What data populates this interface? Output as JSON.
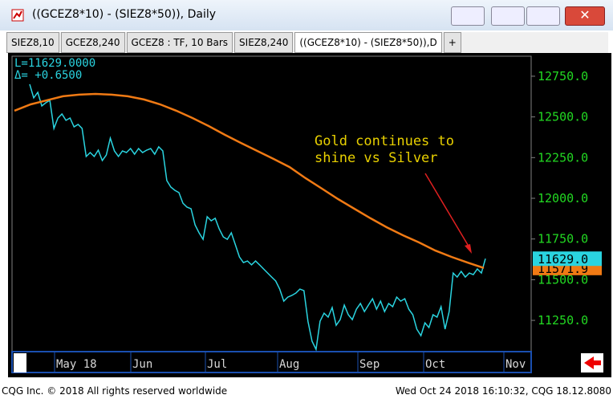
{
  "window": {
    "title": "((GCEZ8*10) - (SIEZ8*50)), Daily"
  },
  "tabs": [
    "SIEZ8,10",
    "GCEZ8,240",
    "GCEZ8 : TF, 10 Bars",
    "SIEZ8,240",
    "((GCEZ8*10) - (SIEZ8*50)),D",
    "+"
  ],
  "footer": {
    "left": "CQG Inc. © 2018 All rights reserved worldwide",
    "right": "Wed Oct 24 2018 16:10:32, CQG 18.12.8080"
  },
  "chart_data": {
    "type": "line",
    "info": [
      "L=11629.0000",
      "Δ=   +0.6500"
    ],
    "annotation": "Gold continues to shine vs Silver",
    "x_labels": [
      "May 18",
      "Jun",
      "Jul",
      "Aug",
      "Sep",
      "Oct",
      "Nov"
    ],
    "price_labels": [
      "11629.0",
      "11571.9"
    ],
    "ylim": [
      11058,
      12873
    ],
    "yticks": [
      {
        "value": 11250,
        "label": "11250.0"
      },
      {
        "value": 11500,
        "label": "11500.0"
      },
      {
        "value": 11750,
        "label": "11750.0"
      },
      {
        "value": 12000,
        "label": "12000.0"
      },
      {
        "value": 12250,
        "label": "12250.0"
      },
      {
        "value": 12500,
        "label": "12500.0"
      },
      {
        "value": 12750,
        "label": "12750.0"
      }
    ],
    "series": [
      {
        "color": "#2ad4e0",
        "values": [
          12701,
          12617,
          12651,
          12567,
          12587,
          12602,
          12429,
          12493,
          12518,
          12479,
          12493,
          12439,
          12454,
          12429,
          12257,
          12281,
          12257,
          12296,
          12232,
          12266,
          12370,
          12291,
          12257,
          12291,
          12281,
          12306,
          12271,
          12306,
          12281,
          12296,
          12306,
          12271,
          12316,
          12291,
          12109,
          12069,
          12049,
          12035,
          11970,
          11946,
          11936,
          11837,
          11788,
          11748,
          11887,
          11862,
          11877,
          11812,
          11763,
          11748,
          11788,
          11714,
          11640,
          11605,
          11615,
          11591,
          11615,
          11591,
          11566,
          11541,
          11516,
          11492,
          11442,
          11368,
          11393,
          11403,
          11418,
          11442,
          11433,
          11245,
          11122,
          11072,
          11245,
          11294,
          11270,
          11329,
          11220,
          11255,
          11344,
          11285,
          11255,
          11319,
          11354,
          11304,
          11344,
          11383,
          11319,
          11368,
          11304,
          11354,
          11334,
          11393,
          11368,
          11383,
          11319,
          11285,
          11196,
          11156,
          11235,
          11206,
          11285,
          11270,
          11334,
          11196,
          11304,
          11541,
          11516,
          11551,
          11516,
          11541,
          11531,
          11566,
          11541,
          11629
        ]
      },
      {
        "color": "#f07a14",
        "values": [
          12538,
          12577,
          12602,
          12627,
          12637,
          12641,
          12637,
          12627,
          12607,
          12577,
          12538,
          12493,
          12444,
          12390,
          12340,
          12291,
          12242,
          12192,
          12123,
          12059,
          11995,
          11936,
          11877,
          11822,
          11773,
          11729,
          11679,
          11640,
          11605,
          11571.9
        ]
      }
    ]
  }
}
